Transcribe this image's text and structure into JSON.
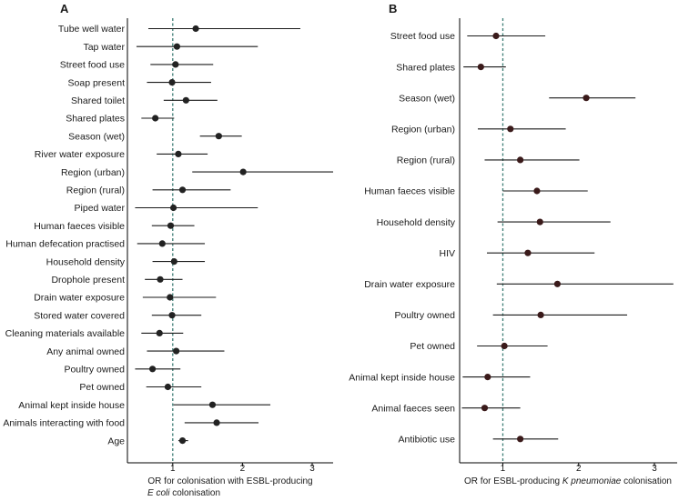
{
  "chart_data": [
    {
      "type": "forest",
      "panel_label": "A",
      "xlabel": "OR for colonisation with ESBL-producing",
      "xlabel_line2_italic": "E coli",
      "xlabel_line2_rest": " colonisation",
      "xlim": [
        0.35,
        3.3
      ],
      "xticks": [
        1,
        2,
        3
      ],
      "xtick_labels": [
        "1",
        "2",
        "3"
      ],
      "reference_line": 1,
      "point_color": "#222222",
      "ref_color": "#3d7d75",
      "rows": [
        {
          "label": "Tube well water",
          "or": 1.33,
          "lo": 0.65,
          "hi": 2.83
        },
        {
          "label": "Tap water",
          "or": 1.06,
          "lo": 0.48,
          "hi": 2.22
        },
        {
          "label": "Street food use",
          "or": 1.04,
          "lo": 0.68,
          "hi": 1.58
        },
        {
          "label": "Soap present",
          "or": 0.99,
          "lo": 0.63,
          "hi": 1.55
        },
        {
          "label": "Shared toilet",
          "or": 1.19,
          "lo": 0.87,
          "hi": 1.64
        },
        {
          "label": "Shared plates",
          "or": 0.75,
          "lo": 0.55,
          "hi": 1.02
        },
        {
          "label": "Season (wet)",
          "or": 1.66,
          "lo": 1.39,
          "hi": 1.99
        },
        {
          "label": "River water exposure",
          "or": 1.08,
          "lo": 0.77,
          "hi": 1.5
        },
        {
          "label": "Region (urban)",
          "or": 2.01,
          "lo": 1.28,
          "hi": 3.3
        },
        {
          "label": "Region (rural)",
          "or": 1.14,
          "lo": 0.71,
          "hi": 1.83
        },
        {
          "label": "Piped water",
          "or": 1.01,
          "lo": 0.46,
          "hi": 2.22
        },
        {
          "label": "Human faeces visible",
          "or": 0.97,
          "lo": 0.7,
          "hi": 1.31
        },
        {
          "label": "Human defecation practised",
          "or": 0.85,
          "lo": 0.49,
          "hi": 1.46
        },
        {
          "label": "Household density",
          "or": 1.02,
          "lo": 0.71,
          "hi": 1.46
        },
        {
          "label": "Drophole present",
          "or": 0.82,
          "lo": 0.6,
          "hi": 1.14
        },
        {
          "label": "Drain water exposure",
          "or": 0.96,
          "lo": 0.57,
          "hi": 1.62
        },
        {
          "label": "Stored water covered",
          "or": 0.99,
          "lo": 0.7,
          "hi": 1.41
        },
        {
          "label": "Cleaning materials available",
          "or": 0.81,
          "lo": 0.55,
          "hi": 1.15
        },
        {
          "label": "Any animal owned",
          "or": 1.05,
          "lo": 0.63,
          "hi": 1.74
        },
        {
          "label": "Poultry owned",
          "or": 0.71,
          "lo": 0.46,
          "hi": 1.11
        },
        {
          "label": "Pet owned",
          "or": 0.93,
          "lo": 0.62,
          "hi": 1.41
        },
        {
          "label": "Animal kept inside house",
          "or": 1.57,
          "lo": 1.01,
          "hi": 2.4
        },
        {
          "label": "Animals interacting with food",
          "or": 1.63,
          "lo": 1.17,
          "hi": 2.23
        },
        {
          "label": "Age",
          "or": 1.14,
          "lo": 1.08,
          "hi": 1.22
        }
      ]
    },
    {
      "type": "forest",
      "panel_label": "B",
      "xlabel_pre": "OR for ESBL-producing ",
      "xlabel_italic": "K pneumoniae",
      "xlabel_post": " colonisation",
      "xlim": [
        0.43,
        3.3
      ],
      "xticks": [
        1,
        2,
        3
      ],
      "xtick_labels": [
        "1",
        "2",
        "3"
      ],
      "reference_line": 1,
      "point_color": "#3a1a1a",
      "ref_color": "#3d7d75",
      "rows": [
        {
          "label": "Street food use",
          "or": 0.91,
          "lo": 0.53,
          "hi": 1.56
        },
        {
          "label": "Shared plates",
          "or": 0.71,
          "lo": 0.48,
          "hi": 1.04
        },
        {
          "label": "Season (wet)",
          "or": 2.1,
          "lo": 1.61,
          "hi": 2.75
        },
        {
          "label": "Region (urban)",
          "or": 1.1,
          "lo": 0.67,
          "hi": 1.83
        },
        {
          "label": "Region (rural)",
          "or": 1.23,
          "lo": 0.76,
          "hi": 2.01
        },
        {
          "label": "Human faeces visible",
          "or": 1.45,
          "lo": 1.0,
          "hi": 2.12
        },
        {
          "label": "Household density",
          "or": 1.49,
          "lo": 0.93,
          "hi": 2.42
        },
        {
          "label": "HIV",
          "or": 1.33,
          "lo": 0.79,
          "hi": 2.21
        },
        {
          "label": "Drain water exposure",
          "or": 1.72,
          "lo": 0.92,
          "hi": 3.25
        },
        {
          "label": "Poultry owned",
          "or": 1.5,
          "lo": 0.87,
          "hi": 2.64
        },
        {
          "label": "Pet owned",
          "or": 1.02,
          "lo": 0.66,
          "hi": 1.59
        },
        {
          "label": "Animal kept inside house",
          "or": 0.8,
          "lo": 0.47,
          "hi": 1.36
        },
        {
          "label": "Animal faeces seen",
          "or": 0.76,
          "lo": 0.46,
          "hi": 1.23
        },
        {
          "label": "Antibiotic use",
          "or": 1.23,
          "lo": 0.87,
          "hi": 1.73
        }
      ]
    }
  ]
}
